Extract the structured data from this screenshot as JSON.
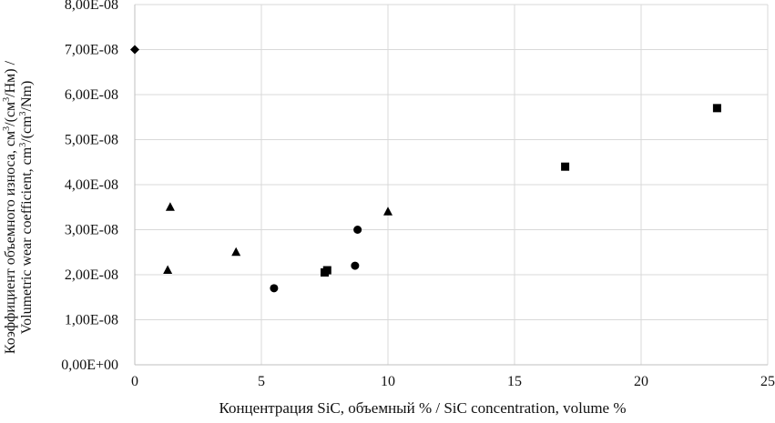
{
  "chart_data": {
    "type": "scatter",
    "title": "",
    "xlabel": "Концентрация SiC, объемный % / SiC concentration, volume %",
    "ylabel_line1_prefix": "Коэффициент объемного износа, см",
    "ylabel_line1_mid": "/(см",
    "ylabel_line1_suffix": "/Нм) /",
    "ylabel_line2_prefix": "Volumetric wear coefficient, cm",
    "ylabel_line2_mid": "/(cm",
    "ylabel_line2_suffix": "/Nm)",
    "ylabel_sup": "3",
    "xlim": [
      0,
      25
    ],
    "ylim": [
      0,
      8e-08
    ],
    "x_ticks": [
      {
        "value": 0,
        "label": "0"
      },
      {
        "value": 5,
        "label": "5"
      },
      {
        "value": 10,
        "label": "10"
      },
      {
        "value": 15,
        "label": "15"
      },
      {
        "value": 20,
        "label": "20"
      },
      {
        "value": 25,
        "label": "25"
      }
    ],
    "y_ticks": [
      {
        "value": 0,
        "label": "0,00E+00"
      },
      {
        "value": 1e-08,
        "label": "1,00E-08"
      },
      {
        "value": 2e-08,
        "label": "2,00E-08"
      },
      {
        "value": 3e-08,
        "label": "3,00E-08"
      },
      {
        "value": 4e-08,
        "label": "4,00E-08"
      },
      {
        "value": 5e-08,
        "label": "5,00E-08"
      },
      {
        "value": 6e-08,
        "label": "6,00E-08"
      },
      {
        "value": 7e-08,
        "label": "7,00E-08"
      },
      {
        "value": 8e-08,
        "label": "8,00E-08"
      }
    ],
    "grid": true,
    "legend": "none",
    "series": [
      {
        "marker": "diamond",
        "color": "#000000",
        "points": [
          [
            0,
            7e-08
          ]
        ]
      },
      {
        "marker": "triangle",
        "color": "#000000",
        "points": [
          [
            1.3,
            2.1e-08
          ],
          [
            1.4,
            3.5e-08
          ],
          [
            4.0,
            2.5e-08
          ],
          [
            10.0,
            3.4e-08
          ]
        ]
      },
      {
        "marker": "circle",
        "color": "#000000",
        "points": [
          [
            5.5,
            1.7e-08
          ],
          [
            8.7,
            2.2e-08
          ],
          [
            8.8,
            3e-08
          ]
        ]
      },
      {
        "marker": "square",
        "color": "#000000",
        "points": [
          [
            7.5,
            2.05e-08
          ],
          [
            7.6,
            2.1e-08
          ],
          [
            17.0,
            4.4e-08
          ],
          [
            23.0,
            5.7e-08
          ]
        ]
      }
    ]
  },
  "colors": {
    "gridline": "#d9d9d9",
    "axis": "#bfbfbf",
    "marker": "#000000"
  }
}
